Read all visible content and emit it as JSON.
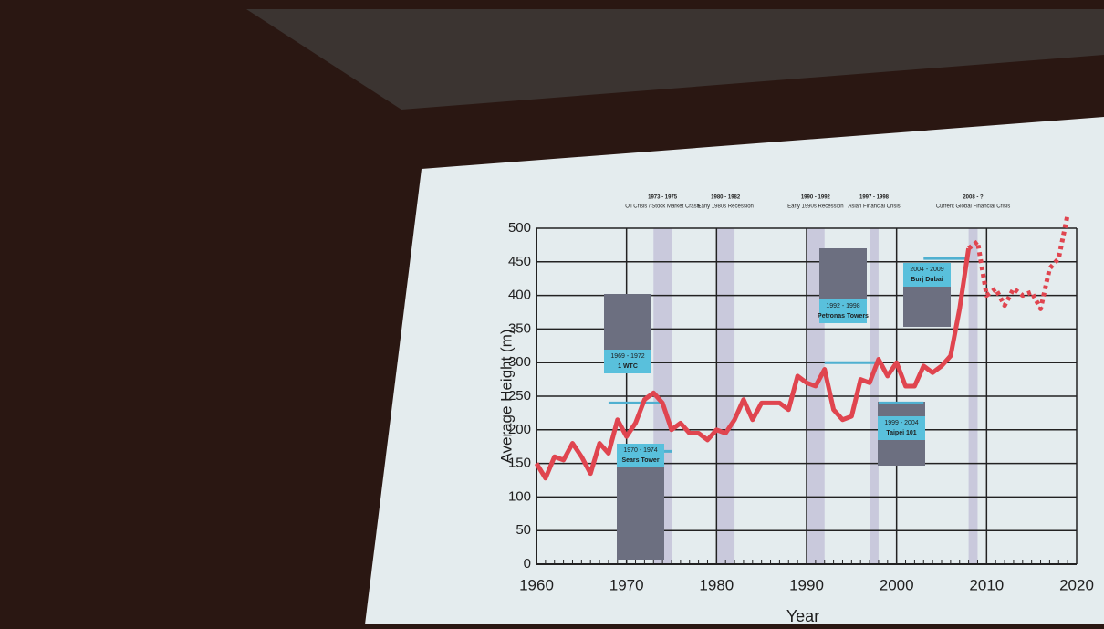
{
  "chart_data": {
    "type": "line",
    "y_label": "Average Height (m)",
    "x_label": "Year",
    "x": [
      1960,
      1961,
      1962,
      1963,
      1964,
      1965,
      1966,
      1967,
      1968,
      1969,
      1970,
      1971,
      1972,
      1973,
      1974,
      1975,
      1976,
      1977,
      1978,
      1979,
      1980,
      1981,
      1982,
      1983,
      1984,
      1985,
      1986,
      1987,
      1988,
      1989,
      1990,
      1991,
      1992,
      1993,
      1994,
      1995,
      1996,
      1997,
      1998,
      1999,
      2000,
      2001,
      2002,
      2003,
      2004,
      2005,
      2006,
      2007,
      2008,
      2009,
      2010,
      2011,
      2012,
      2013,
      2014,
      2015,
      2016,
      2017,
      2018,
      2019
    ],
    "series": [
      {
        "color": "#e0454f",
        "dashed": false,
        "values": [
          150,
          128,
          160,
          155,
          180,
          160,
          135,
          180,
          165,
          215,
          190,
          210,
          245,
          255,
          240,
          200,
          210,
          195,
          195,
          185,
          200,
          195,
          215,
          245,
          215,
          240,
          240,
          240,
          230,
          280,
          270,
          265,
          290,
          230,
          215,
          220,
          275,
          270,
          305,
          280,
          300,
          265,
          265,
          295,
          285,
          295,
          310,
          380,
          470,
          null,
          null,
          null,
          null,
          null,
          null,
          null,
          null,
          null,
          null,
          null
        ]
      },
      {
        "color": "#e0454f",
        "dashed": true,
        "values": [
          null,
          null,
          null,
          null,
          null,
          null,
          null,
          null,
          null,
          null,
          null,
          null,
          null,
          null,
          null,
          null,
          null,
          null,
          null,
          null,
          null,
          null,
          null,
          null,
          null,
          null,
          null,
          null,
          null,
          null,
          null,
          null,
          null,
          null,
          null,
          null,
          null,
          null,
          null,
          null,
          null,
          null,
          null,
          null,
          null,
          null,
          null,
          null,
          470,
          480,
          400,
          410,
          385,
          410,
          400,
          405,
          380,
          440,
          455,
          520
        ]
      }
    ],
    "bands": [
      {
        "start": 1973,
        "end": 1975,
        "label": "1973 - 1975",
        "desc": "Oil Crisis / Stock Market Crash"
      },
      {
        "start": 1980,
        "end": 1982,
        "label": "1980 - 1982",
        "desc": "Early 1980s Recession"
      },
      {
        "start": 1990,
        "end": 1992,
        "label": "1990 - 1992",
        "desc": "Early 1990s Recession"
      },
      {
        "start": 1997,
        "end": 1998,
        "label": "1997 - 1998",
        "desc": "Asian Financial Crisis"
      },
      {
        "start": 2008,
        "end": 2009,
        "label": "2008 - ?",
        "desc": "Current Global Financial Crisis"
      }
    ],
    "callouts": [
      {
        "years": "1969 - 1972",
        "name": "1 WTC"
      },
      {
        "years": "1970 - 1974",
        "name": "Sears Tower"
      },
      {
        "years": "1992 - 1998",
        "name": "Petronas Towers"
      },
      {
        "years": "1999 - 2004",
        "name": "Taipei 101"
      },
      {
        "years": "2004 - 2009",
        "name": "Burj Dubai"
      }
    ],
    "xlim": [
      1960,
      2020
    ],
    "xticks": [
      1960,
      1970,
      1980,
      1990,
      2000,
      2010,
      2020
    ],
    "ylim": [
      0,
      500
    ],
    "yticks": [
      0,
      50,
      100,
      150,
      200,
      250,
      300,
      350,
      400,
      450,
      500
    ],
    "grid": true
  }
}
